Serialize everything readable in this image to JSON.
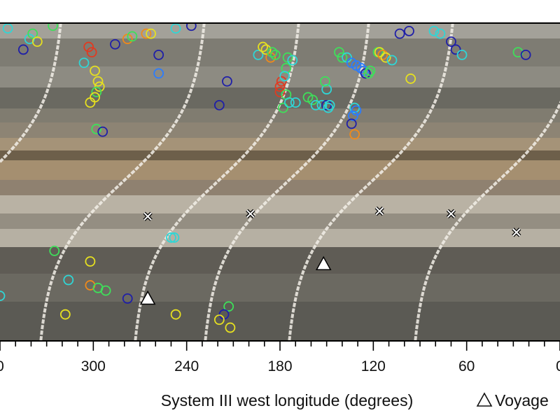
{
  "chart_data": {
    "type": "scatter",
    "title": "",
    "xlabel": "System III west longitude (degrees)",
    "x_axis": {
      "direction": "decreasing",
      "range": [
        360,
        0
      ],
      "tick_labels": [
        "0",
        "300",
        "240",
        "180",
        "120",
        "60",
        "0"
      ],
      "major_ticks": [
        360,
        300,
        240,
        180,
        120,
        60,
        0
      ]
    },
    "legend": {
      "placement": "bottom-right",
      "entries": [
        {
          "marker": "triangle",
          "label": "Voyage"
        }
      ]
    },
    "colors": {
      "dark_blue": "#1f1fa8",
      "blue": "#2a7cff",
      "cyan": "#2fd6d6",
      "green": "#3ee05a",
      "yellow": "#e6e020",
      "orange": "#f08a1a",
      "red": "#e23a20",
      "track": "#f2efe8"
    },
    "series": [
      {
        "marker": "open-circle",
        "points": [
          {
            "x": 355,
            "y": 0.02,
            "c": "cyan"
          },
          {
            "x": 345,
            "y": 0.1,
            "c": "dark_blue"
          },
          {
            "x": 341,
            "y": 0.06,
            "c": "cyan"
          },
          {
            "x": 339,
            "y": 0.04,
            "c": "green"
          },
          {
            "x": 336,
            "y": 0.07,
            "c": "yellow"
          },
          {
            "x": 326,
            "y": 0.01,
            "c": "green"
          },
          {
            "x": 306,
            "y": 0.15,
            "c": "cyan"
          },
          {
            "x": 299,
            "y": 0.18,
            "c": "yellow"
          },
          {
            "x": 297,
            "y": 0.22,
            "c": "yellow"
          },
          {
            "x": 296,
            "y": 0.24,
            "c": "yellow"
          },
          {
            "x": 298,
            "y": 0.26,
            "c": "green"
          },
          {
            "x": 299,
            "y": 0.28,
            "c": "yellow"
          },
          {
            "x": 302,
            "y": 0.3,
            "c": "yellow"
          },
          {
            "x": 298,
            "y": 0.4,
            "c": "green"
          },
          {
            "x": 294,
            "y": 0.41,
            "c": "dark_blue"
          },
          {
            "x": 303,
            "y": 0.09,
            "c": "red"
          },
          {
            "x": 301,
            "y": 0.11,
            "c": "red"
          },
          {
            "x": 286,
            "y": 0.08,
            "c": "dark_blue"
          },
          {
            "x": 278,
            "y": 0.06,
            "c": "orange"
          },
          {
            "x": 275,
            "y": 0.05,
            "c": "green"
          },
          {
            "x": 266,
            "y": 0.04,
            "c": "orange"
          },
          {
            "x": 263,
            "y": 0.04,
            "c": "yellow"
          },
          {
            "x": 258,
            "y": 0.12,
            "c": "dark_blue"
          },
          {
            "x": 258,
            "y": 0.19,
            "c": "blue"
          },
          {
            "x": 247,
            "y": 0.02,
            "c": "cyan"
          },
          {
            "x": 237,
            "y": 0.01,
            "c": "dark_blue"
          },
          {
            "x": 219,
            "y": 0.31,
            "c": "dark_blue"
          },
          {
            "x": 214,
            "y": 0.22,
            "c": "dark_blue"
          },
          {
            "x": 194,
            "y": 0.12,
            "c": "cyan"
          },
          {
            "x": 191,
            "y": 0.09,
            "c": "yellow"
          },
          {
            "x": 189,
            "y": 0.1,
            "c": "yellow"
          },
          {
            "x": 186,
            "y": 0.13,
            "c": "orange"
          },
          {
            "x": 185,
            "y": 0.11,
            "c": "green"
          },
          {
            "x": 183,
            "y": 0.12,
            "c": "green"
          },
          {
            "x": 180,
            "y": 0.24,
            "c": "red"
          },
          {
            "x": 180,
            "y": 0.26,
            "c": "red"
          },
          {
            "x": 179,
            "y": 0.22,
            "c": "red"
          },
          {
            "x": 176,
            "y": 0.17,
            "c": "green"
          },
          {
            "x": 177,
            "y": 0.2,
            "c": "cyan"
          },
          {
            "x": 175,
            "y": 0.13,
            "c": "green"
          },
          {
            "x": 172,
            "y": 0.14,
            "c": "cyan"
          },
          {
            "x": 176,
            "y": 0.27,
            "c": "green"
          },
          {
            "x": 178,
            "y": 0.32,
            "c": "green"
          },
          {
            "x": 174,
            "y": 0.3,
            "c": "cyan"
          },
          {
            "x": 170,
            "y": 0.3,
            "c": "cyan"
          },
          {
            "x": 162,
            "y": 0.28,
            "c": "green"
          },
          {
            "x": 159,
            "y": 0.29,
            "c": "green"
          },
          {
            "x": 157,
            "y": 0.31,
            "c": "cyan"
          },
          {
            "x": 153,
            "y": 0.31,
            "c": "cyan"
          },
          {
            "x": 150,
            "y": 0.31,
            "c": "dark_blue"
          },
          {
            "x": 149,
            "y": 0.32,
            "c": "cyan"
          },
          {
            "x": 148,
            "y": 0.31,
            "c": "cyan"
          },
          {
            "x": 150,
            "y": 0.25,
            "c": "cyan"
          },
          {
            "x": 151,
            "y": 0.22,
            "c": "green"
          },
          {
            "x": 142,
            "y": 0.11,
            "c": "green"
          },
          {
            "x": 140,
            "y": 0.13,
            "c": "green"
          },
          {
            "x": 137,
            "y": 0.13,
            "c": "cyan"
          },
          {
            "x": 134,
            "y": 0.15,
            "c": "blue"
          },
          {
            "x": 131,
            "y": 0.16,
            "c": "blue"
          },
          {
            "x": 128,
            "y": 0.17,
            "c": "blue"
          },
          {
            "x": 126,
            "y": 0.18,
            "c": "blue"
          },
          {
            "x": 125,
            "y": 0.19,
            "c": "dark_blue"
          },
          {
            "x": 123,
            "y": 0.19,
            "c": "green"
          },
          {
            "x": 122,
            "y": 0.18,
            "c": "green"
          },
          {
            "x": 132,
            "y": 0.32,
            "c": "cyan"
          },
          {
            "x": 131,
            "y": 0.33,
            "c": "blue"
          },
          {
            "x": 133,
            "y": 0.35,
            "c": "blue"
          },
          {
            "x": 134,
            "y": 0.38,
            "c": "dark_blue"
          },
          {
            "x": 132,
            "y": 0.42,
            "c": "orange"
          },
          {
            "x": 117,
            "y": 0.11,
            "c": "green"
          },
          {
            "x": 116,
            "y": 0.11,
            "c": "yellow"
          },
          {
            "x": 114,
            "y": 0.12,
            "c": "orange"
          },
          {
            "x": 112,
            "y": 0.13,
            "c": "yellow"
          },
          {
            "x": 108,
            "y": 0.14,
            "c": "cyan"
          },
          {
            "x": 96,
            "y": 0.21,
            "c": "yellow"
          },
          {
            "x": 103,
            "y": 0.04,
            "c": "dark_blue"
          },
          {
            "x": 97,
            "y": 0.03,
            "c": "dark_blue"
          },
          {
            "x": 81,
            "y": 0.03,
            "c": "cyan"
          },
          {
            "x": 77,
            "y": 0.04,
            "c": "cyan"
          },
          {
            "x": 70,
            "y": 0.07,
            "c": "dark_blue"
          },
          {
            "x": 67,
            "y": 0.1,
            "c": "dark_blue"
          },
          {
            "x": 63,
            "y": 0.12,
            "c": "cyan"
          },
          {
            "x": 27,
            "y": 0.11,
            "c": "green"
          },
          {
            "x": 22,
            "y": 0.12,
            "c": "dark_blue"
          },
          {
            "x": 325,
            "y": 0.86,
            "c": "green"
          },
          {
            "x": 302,
            "y": 0.9,
            "c": "yellow"
          },
          {
            "x": 316,
            "y": 0.97,
            "c": "cyan"
          },
          {
            "x": 302,
            "y": 0.99,
            "c": "orange"
          },
          {
            "x": 297,
            "y": 1.0,
            "c": "green"
          },
          {
            "x": 292,
            "y": 1.01,
            "c": "green"
          },
          {
            "x": 278,
            "y": 1.04,
            "c": "dark_blue"
          },
          {
            "x": 250,
            "y": 0.81,
            "c": "cyan"
          },
          {
            "x": 248,
            "y": 0.81,
            "c": "cyan"
          },
          {
            "x": 247,
            "y": 1.1,
            "c": "yellow"
          },
          {
            "x": 318,
            "y": 1.1,
            "c": "yellow"
          },
          {
            "x": 213,
            "y": 1.07,
            "c": "green"
          },
          {
            "x": 216,
            "y": 1.1,
            "c": "dark_blue"
          },
          {
            "x": 219,
            "y": 1.12,
            "c": "yellow"
          },
          {
            "x": 212,
            "y": 1.15,
            "c": "yellow"
          },
          {
            "x": 360,
            "y": 1.03,
            "c": "cyan"
          }
        ]
      },
      {
        "marker": "x",
        "points": [
          {
            "x": 265,
            "y": 0.73
          },
          {
            "x": 199,
            "y": 0.72
          },
          {
            "x": 116,
            "y": 0.71
          },
          {
            "x": 70,
            "y": 0.72
          },
          {
            "x": 28,
            "y": 0.79
          }
        ]
      },
      {
        "name": "Voyage",
        "marker": "triangle",
        "points": [
          {
            "x": 152,
            "y": 0.91
          },
          {
            "x": 265,
            "y": 1.04
          }
        ]
      }
    ]
  }
}
